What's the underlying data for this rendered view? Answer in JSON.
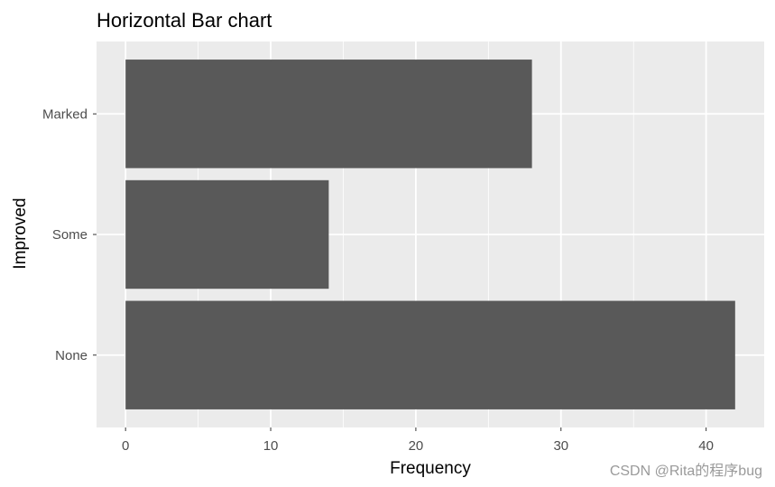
{
  "chart_data": {
    "type": "bar",
    "orientation": "horizontal",
    "title": "Horizontal Bar chart",
    "xlabel": "Frequency",
    "ylabel": "Improved",
    "categories": [
      "None",
      "Some",
      "Marked"
    ],
    "values": [
      42,
      14,
      28
    ],
    "xlim": [
      -2,
      44
    ],
    "x_ticks": [
      0,
      10,
      20,
      30,
      40
    ],
    "x_minor_ticks": [
      5,
      15,
      25,
      35
    ],
    "grid": true,
    "colors": {
      "bar": "#595959",
      "panel": "#ebebeb",
      "grid": "#ffffff"
    }
  },
  "watermark": "CSDN @Rita的程序bug"
}
